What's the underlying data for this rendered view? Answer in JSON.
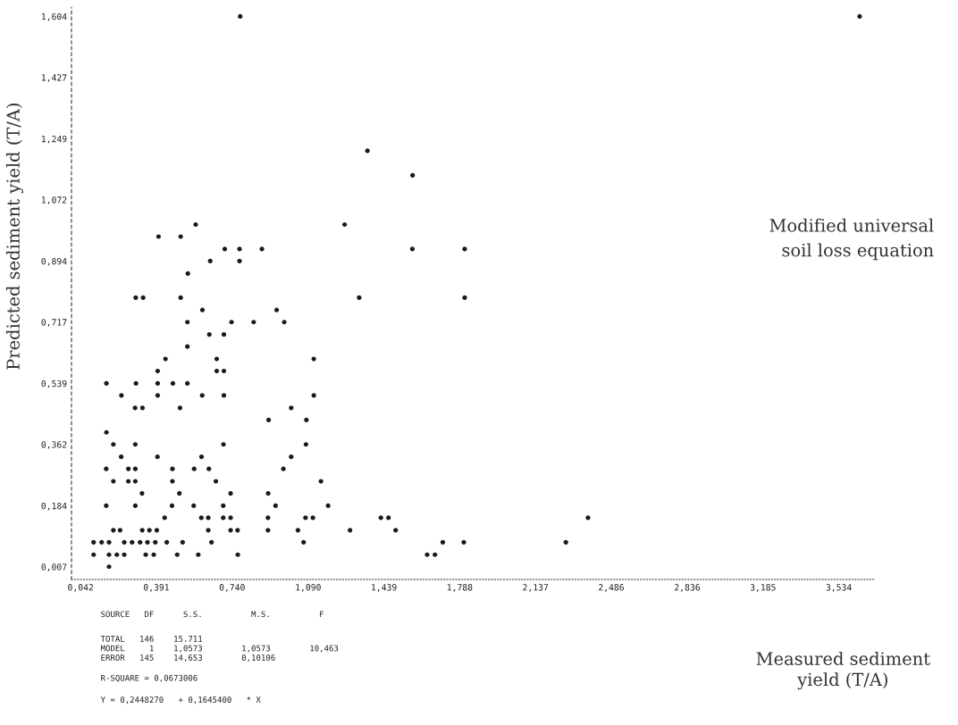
{
  "chart_data": {
    "type": "scatter",
    "ylabel": "Predicted sediment yield (T/A)",
    "annotations": [
      "Modified universal\nsoil loss equation",
      "Measured sediment\nyield (T/A)",
      "SOURCE   DF      S.S.          M.S.          F",
      "TOTAL   146    15.711",
      "MODEL     1    1,0573        1,0573        10,463",
      "ERROR   145    14,653        0,10106",
      "R-SQUARE = 0,0673006",
      "Y = 0,2448270   + 0,1645400   * X"
    ],
    "xlim": [
      0.0,
      3.7
    ],
    "ylim": [
      -0.03,
      1.63
    ],
    "xticks": [
      {
        "value": 0.042,
        "label": "0,042"
      },
      {
        "value": 0.391,
        "label": "0,391"
      },
      {
        "value": 0.74,
        "label": "0,740"
      },
      {
        "value": 1.09,
        "label": "1,090"
      },
      {
        "value": 1.439,
        "label": "1,439"
      },
      {
        "value": 1.788,
        "label": "1,788"
      },
      {
        "value": 2.137,
        "label": "2,137"
      },
      {
        "value": 2.486,
        "label": "2,486"
      },
      {
        "value": 2.836,
        "label": "2,836"
      },
      {
        "value": 3.185,
        "label": "3,185"
      },
      {
        "value": 3.534,
        "label": "3,534"
      }
    ],
    "yticks": [
      {
        "value": 0.007,
        "label": "0,007"
      },
      {
        "value": 0.184,
        "label": "0,184"
      },
      {
        "value": 0.362,
        "label": "0,362"
      },
      {
        "value": 0.539,
        "label": "0,539"
      },
      {
        "value": 0.717,
        "label": "0,717"
      },
      {
        "value": 0.894,
        "label": "0,894"
      },
      {
        "value": 1.072,
        "label": "1,072"
      },
      {
        "value": 1.249,
        "label": "1,249"
      },
      {
        "value": 1.427,
        "label": "1,427"
      },
      {
        "value": 1.604,
        "label": "1,604"
      }
    ],
    "marker": "circle",
    "grid": false,
    "series": [
      {
        "color": "#1a1a1a",
        "x": [
          0.777,
          3.63,
          1.363,
          1.571,
          0.572,
          1.258,
          0.401,
          0.503,
          0.706,
          0.774,
          0.877,
          1.57,
          1.811,
          0.639,
          0.774,
          0.536,
          0.296,
          0.33,
          0.503,
          1.325,
          1.811,
          0.603,
          0.945,
          0.534,
          0.737,
          0.839,
          0.98,
          0.635,
          0.702,
          0.534,
          0.433,
          0.669,
          1.116,
          0.397,
          0.669,
          0.702,
          0.161,
          0.297,
          0.397,
          0.467,
          0.534,
          0.23,
          0.397,
          0.602,
          0.702,
          1.116,
          0.293,
          0.327,
          0.5,
          1.012,
          0.908,
          1.082,
          0.161,
          0.193,
          0.294,
          0.7,
          1.08,
          0.229,
          0.396,
          0.599,
          1.012,
          0.16,
          0.262,
          0.294,
          0.465,
          0.565,
          0.633,
          0.976,
          0.193,
          0.262,
          0.294,
          0.465,
          0.665,
          1.149,
          0.325,
          0.497,
          0.733,
          0.906,
          0.16,
          0.294,
          0.463,
          0.563,
          0.699,
          0.94,
          1.182,
          0.429,
          0.598,
          0.63,
          0.699,
          0.733,
          0.905,
          1.078,
          1.112,
          1.425,
          1.46,
          2.379,
          0.193,
          0.224,
          0.326,
          0.359,
          0.393,
          0.63,
          0.733,
          0.765,
          0.905,
          1.043,
          1.283,
          1.493,
          0.102,
          0.139,
          0.173,
          0.243,
          0.279,
          0.316,
          0.35,
          0.386,
          0.439,
          0.512,
          0.645,
          1.069,
          1.71,
          1.807,
          2.277,
          0.102,
          0.173,
          0.209,
          0.243,
          0.342,
          0.379,
          0.487,
          0.584,
          0.766,
          1.638,
          1.674,
          0.173
        ],
        "values": [
          1.604,
          1.604,
          1.214,
          1.143,
          1.0,
          1.0,
          0.965,
          0.965,
          0.929,
          0.929,
          0.929,
          0.929,
          0.929,
          0.894,
          0.894,
          0.858,
          0.788,
          0.788,
          0.788,
          0.788,
          0.788,
          0.752,
          0.752,
          0.717,
          0.717,
          0.717,
          0.717,
          0.681,
          0.681,
          0.646,
          0.61,
          0.61,
          0.61,
          0.575,
          0.575,
          0.575,
          0.539,
          0.539,
          0.539,
          0.539,
          0.539,
          0.504,
          0.504,
          0.504,
          0.504,
          0.504,
          0.468,
          0.468,
          0.468,
          0.468,
          0.433,
          0.433,
          0.397,
          0.362,
          0.362,
          0.362,
          0.362,
          0.326,
          0.326,
          0.326,
          0.326,
          0.291,
          0.291,
          0.291,
          0.291,
          0.291,
          0.291,
          0.291,
          0.255,
          0.255,
          0.255,
          0.255,
          0.255,
          0.255,
          0.22,
          0.22,
          0.22,
          0.22,
          0.184,
          0.184,
          0.184,
          0.184,
          0.184,
          0.184,
          0.184,
          0.149,
          0.149,
          0.149,
          0.149,
          0.149,
          0.149,
          0.149,
          0.149,
          0.149,
          0.149,
          0.149,
          0.113,
          0.113,
          0.113,
          0.113,
          0.113,
          0.113,
          0.113,
          0.113,
          0.113,
          0.113,
          0.113,
          0.113,
          0.078,
          0.078,
          0.078,
          0.078,
          0.078,
          0.078,
          0.078,
          0.078,
          0.078,
          0.078,
          0.078,
          0.078,
          0.078,
          0.078,
          0.078,
          0.042,
          0.042,
          0.042,
          0.042,
          0.042,
          0.042,
          0.042,
          0.042,
          0.042,
          0.042,
          0.042,
          0.007
        ]
      }
    ]
  }
}
